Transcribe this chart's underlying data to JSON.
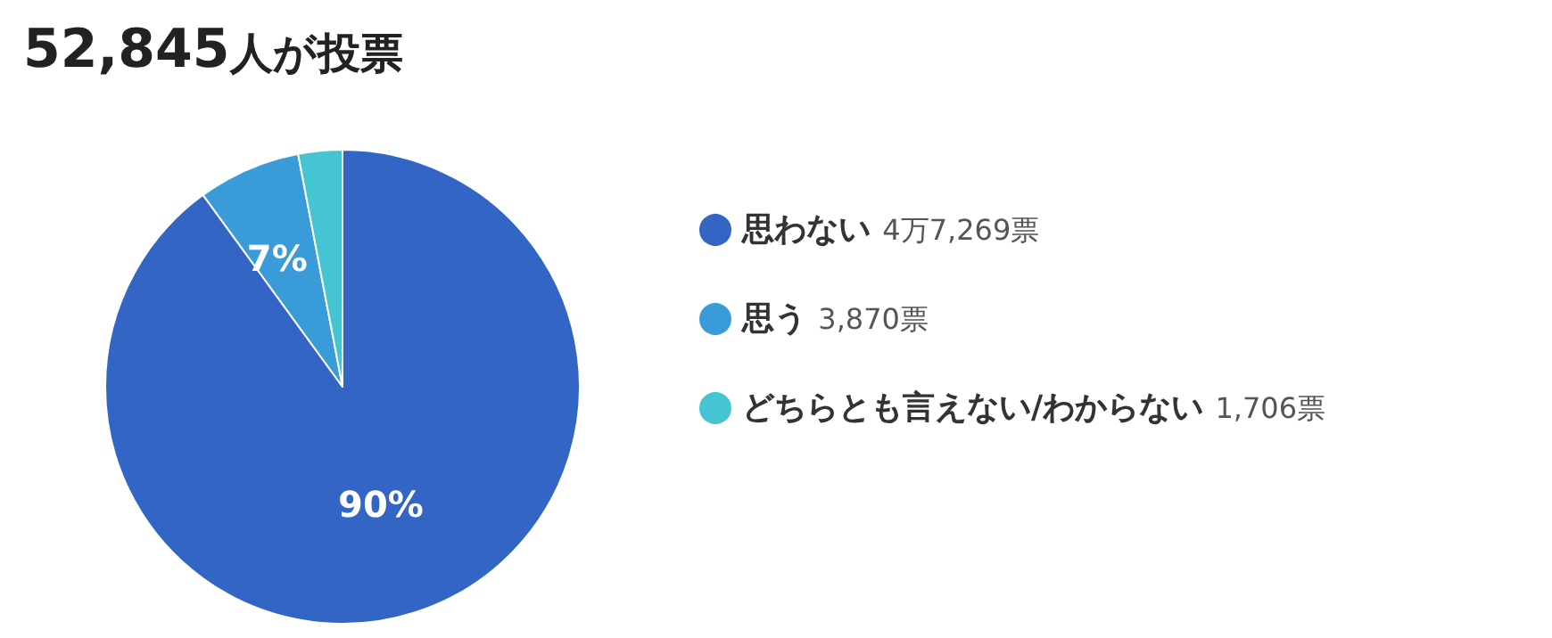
{
  "chart_data": {
    "type": "pie",
    "title": "52,845人が投票",
    "categories": [
      "思わない",
      "思う",
      "どちらとも言えない/わからない"
    ],
    "values": [
      90,
      7,
      3
    ],
    "colors": [
      "#3366c4",
      "#3a9bd9",
      "#45c4d1"
    ],
    "value_labels": [
      "90%",
      "7%",
      null
    ],
    "annotations": [
      "4万7,269票",
      "3,870票",
      "1,706票"
    ],
    "legend": "right"
  }
}
